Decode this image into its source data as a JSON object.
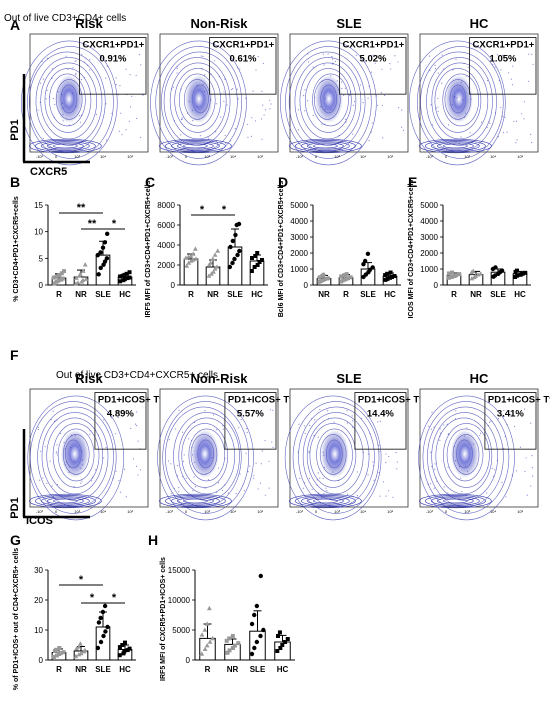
{
  "panel_letters": {
    "A": "A",
    "B": "B",
    "C": "C",
    "D": "D",
    "E": "E",
    "F": "F",
    "G": "G",
    "H": "H"
  },
  "row_a": {
    "subtitle": "Out of live CD3+CD4+ cells",
    "x_axis": "CXCR5",
    "y_axis": "PD1",
    "plots": [
      {
        "title": "Risk",
        "gate": "CXCR1+PD1+",
        "pct": "0.91%"
      },
      {
        "title": "Non-Risk",
        "gate": "CXCR1+PD1+",
        "pct": "0.61%"
      },
      {
        "title": "SLE",
        "gate": "CXCR1+PD1+",
        "pct": "5.02%"
      },
      {
        "title": "HC",
        "gate": "CXCR1+PD1+",
        "pct": "1.05%"
      }
    ],
    "tick_labels": [
      "-10³",
      "0",
      "10³",
      "10⁴",
      "10⁵"
    ]
  },
  "row_f": {
    "subtitle": "Out of live CD3+CD4+CXCR5+ cells",
    "x_axis": "ICOS",
    "y_axis": "PD1",
    "plots": [
      {
        "title": "Risk",
        "gate": "PD1+ICOS+ Tfh",
        "pct": "4.89%"
      },
      {
        "title": "Non-Risk",
        "gate": "PD1+ICOS+ Tfh",
        "pct": "5.57%"
      },
      {
        "title": "SLE",
        "gate": "PD1+ICOS+ Tfh",
        "pct": "14.4%"
      },
      {
        "title": "HC",
        "gate": "PD1+ICOS+ Tfh",
        "pct": "3.41%"
      }
    ],
    "tick_labels": [
      "-10³",
      "0",
      "10³",
      "10⁴",
      "10⁵"
    ]
  },
  "colors": {
    "dot_plot": "#3a3fb0",
    "gray": "#999999",
    "black": "#000000"
  },
  "chart_data": [
    {
      "id": "B",
      "type": "scatter-bar",
      "ylabel": "% CD3+CD4+PD1+CXCR5+cells",
      "categories": [
        "R",
        "NR",
        "SLE",
        "HC"
      ],
      "ylim": [
        0,
        15
      ],
      "yticks": [
        0,
        5,
        10,
        15
      ],
      "means": [
        1.3,
        1.5,
        5.6,
        1.5
      ],
      "sd": [
        0.8,
        1.3,
        2.6,
        0.5
      ],
      "points": [
        [
          0.3,
          0.6,
          0.8,
          1.0,
          1.2,
          1.4,
          1.6,
          1.8,
          2.2,
          2.6
        ],
        [
          0.2,
          0.4,
          0.6,
          0.9,
          1.1,
          1.3,
          1.7,
          2.0,
          2.6,
          3.8
        ],
        [
          2.0,
          3.2,
          3.8,
          4.4,
          5.0,
          5.6,
          6.1,
          7.0,
          8.0,
          9.6
        ],
        [
          0.7,
          0.9,
          1.1,
          1.3,
          1.4,
          1.6,
          1.7,
          1.9,
          2.1,
          2.4
        ]
      ],
      "markers": [
        "square",
        "triangle",
        "circle",
        "square"
      ],
      "marker_colors": [
        "#999999",
        "#999999",
        "#000000",
        "#000000"
      ],
      "brackets": [
        {
          "from": 0,
          "to": 2,
          "label": "**",
          "level": 13.5
        },
        {
          "from": 1,
          "to": 2,
          "label": "**",
          "level": 10.5
        },
        {
          "from": 2,
          "to": 3,
          "label": "*",
          "level": 10.5
        }
      ]
    },
    {
      "id": "C",
      "type": "scatter-bar",
      "ylabel": "IRF5 MFI of CD3+CD4+PD1+CXCR5+cells",
      "categories": [
        "R",
        "NR",
        "SLE",
        "HC"
      ],
      "ylim": [
        0,
        8000
      ],
      "yticks": [
        0,
        2000,
        4000,
        6000,
        8000
      ],
      "means": [
        2600,
        1800,
        3800,
        2400
      ],
      "sd": [
        500,
        700,
        1800,
        600
      ],
      "points": [
        [
          1900,
          2200,
          2400,
          2500,
          2600,
          2700,
          2800,
          2900,
          3100,
          3600
        ],
        [
          900,
          1100,
          1300,
          1600,
          1800,
          2000,
          2200,
          2600,
          3000,
          3400
        ],
        [
          1800,
          2200,
          2600,
          3000,
          3400,
          3800,
          4400,
          5000,
          6000,
          6100
        ],
        [
          1400,
          1800,
          2000,
          2300,
          2500,
          2700,
          2900,
          3200
        ]
      ],
      "markers": [
        "triangle",
        "triangle",
        "circle",
        "square"
      ],
      "marker_colors": [
        "#999999",
        "#999999",
        "#000000",
        "#000000"
      ],
      "brackets": [
        {
          "from": 0,
          "to": 1,
          "label": "*",
          "level": 7000
        },
        {
          "from": 1,
          "to": 2,
          "label": "*",
          "level": 7000
        }
      ]
    },
    {
      "id": "D",
      "type": "scatter-bar",
      "ylabel": "Bcl6 MFI of CD3+CD4+PD1+CXCR5+cells",
      "categories": [
        "NR",
        "R",
        "SLE",
        "HC"
      ],
      "ylim": [
        0,
        5000
      ],
      "yticks": [
        0,
        1000,
        2000,
        3000,
        4000,
        5000
      ],
      "means": [
        400,
        450,
        1000,
        550
      ],
      "sd": [
        200,
        200,
        400,
        200
      ],
      "points": [
        [
          200,
          250,
          320,
          380,
          420,
          480,
          560,
          640
        ],
        [
          220,
          300,
          360,
          420,
          480,
          540,
          620,
          680
        ],
        [
          500,
          650,
          800,
          950,
          1100,
          1300,
          1500,
          1950
        ],
        [
          320,
          380,
          450,
          500,
          560,
          620,
          700,
          780
        ]
      ],
      "markers": [
        "circle",
        "square",
        "circle",
        "square"
      ],
      "marker_colors": [
        "#999999",
        "#999999",
        "#000000",
        "#000000"
      ],
      "brackets": []
    },
    {
      "id": "E",
      "type": "scatter-bar",
      "ylabel": "ICOS MFI of CD3+CD4+PD1+CXCR5+cells",
      "categories": [
        "R",
        "NR",
        "SLE",
        "HC"
      ],
      "ylim": [
        0,
        5000
      ],
      "yticks": [
        0,
        1000,
        2000,
        3000,
        4000,
        5000
      ],
      "means": [
        600,
        650,
        800,
        700
      ],
      "sd": [
        150,
        200,
        200,
        150
      ],
      "points": [
        [
          450,
          500,
          560,
          620,
          680,
          720,
          780
        ],
        [
          400,
          480,
          560,
          640,
          700,
          780,
          860
        ],
        [
          520,
          600,
          700,
          800,
          900,
          1000,
          1100
        ],
        [
          500,
          580,
          640,
          700,
          760,
          820,
          900
        ]
      ],
      "markers": [
        "square",
        "triangle",
        "circle",
        "square"
      ],
      "marker_colors": [
        "#999999",
        "#999999",
        "#000000",
        "#000000"
      ],
      "brackets": []
    },
    {
      "id": "G",
      "type": "scatter-bar",
      "ylabel": "% of PD1+ICOS+ out of CD4+CXCR5+ cells",
      "categories": [
        "R",
        "NR",
        "SLE",
        "HC"
      ],
      "ylim": [
        0,
        30
      ],
      "yticks": [
        0,
        10,
        20,
        30
      ],
      "means": [
        2.5,
        3.0,
        11.0,
        3.5
      ],
      "sd": [
        1.2,
        1.5,
        5.0,
        1.5
      ],
      "points": [
        [
          1.0,
          1.5,
          2.0,
          2.3,
          2.6,
          3.0,
          3.4,
          4.0
        ],
        [
          1.2,
          1.8,
          2.2,
          2.8,
          3.2,
          3.8,
          4.4,
          5.4
        ],
        [
          4.0,
          6.0,
          8.0,
          9.5,
          11.0,
          12.5,
          14.0,
          16.0,
          18.0
        ],
        [
          1.6,
          2.2,
          2.8,
          3.3,
          3.8,
          4.3,
          5.0,
          5.8
        ]
      ],
      "markers": [
        "square",
        "triangle",
        "circle",
        "square"
      ],
      "marker_colors": [
        "#999999",
        "#999999",
        "#000000",
        "#000000"
      ],
      "brackets": [
        {
          "from": 0,
          "to": 2,
          "label": "*",
          "level": 25
        },
        {
          "from": 1,
          "to": 2,
          "label": "*",
          "level": 19
        },
        {
          "from": 2,
          "to": 3,
          "label": "*",
          "level": 19
        }
      ]
    },
    {
      "id": "H",
      "type": "scatter-bar",
      "ylabel": "IRF5 MFI of CXCR5+PD1+ICOS+ cells",
      "categories": [
        "R",
        "NR",
        "SLE",
        "HC"
      ],
      "ylim": [
        0,
        15000
      ],
      "yticks": [
        0,
        5000,
        10000,
        15000
      ],
      "means": [
        3600,
        2600,
        4800,
        3000
      ],
      "sd": [
        2400,
        900,
        3400,
        1100
      ],
      "points": [
        [
          1000,
          1800,
          2400,
          3000,
          3600,
          4200,
          5000,
          6000,
          8600
        ],
        [
          1200,
          1600,
          2000,
          2400,
          2800,
          3200,
          3600,
          4000
        ],
        [
          1000,
          2000,
          3000,
          4000,
          5000,
          6000,
          7500,
          9000,
          14000
        ],
        [
          1500,
          2000,
          2500,
          3000,
          3500,
          4000,
          4600
        ]
      ],
      "markers": [
        "triangle",
        "square",
        "circle",
        "square"
      ],
      "marker_colors": [
        "#999999",
        "#999999",
        "#000000",
        "#000000"
      ],
      "brackets": []
    }
  ]
}
